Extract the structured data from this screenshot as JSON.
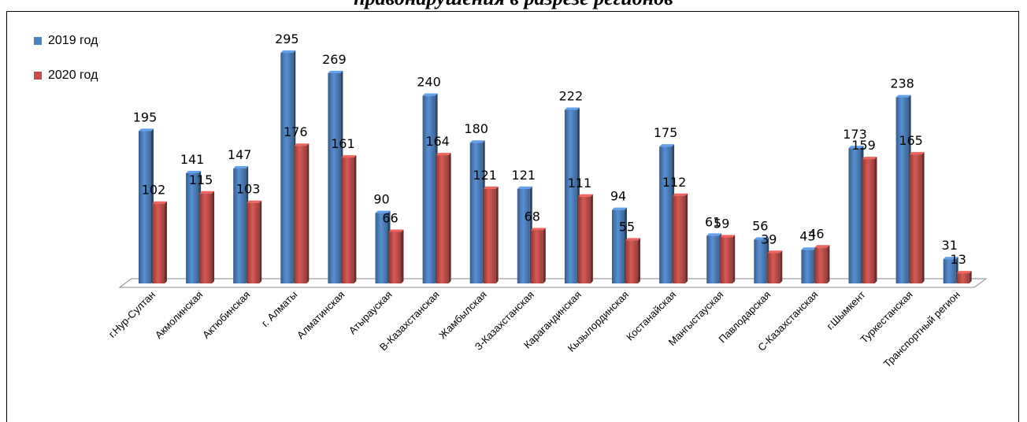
{
  "title_fragment": "правонарушения в разрезе регионов",
  "chart_data": {
    "type": "bar",
    "title": "правонарушения в разрезе регионов",
    "categories": [
      "г.Нур-Султан",
      "Акмолинская",
      "Актюбинская",
      "г. Алматы",
      "Алматинская",
      "Атырауская",
      "В-Казахстанская",
      "Жамбылская",
      "З-Казахстанская",
      "Карагандинская",
      "Кызылординская",
      "Костанайская",
      "Мангыстауская",
      "Павлодарская",
      "С-Казахстанская",
      "г.Шымкент",
      "Туркестанская",
      "Транспортный регион"
    ],
    "series": [
      {
        "name": "2019 год",
        "color": "#4F81BD",
        "values": [
          195,
          141,
          147,
          295,
          269,
          90,
          240,
          180,
          121,
          222,
          94,
          175,
          61,
          56,
          43,
          173,
          238,
          31
        ]
      },
      {
        "name": "2020 год",
        "color": "#C0504D",
        "values": [
          102,
          115,
          103,
          176,
          161,
          66,
          164,
          121,
          68,
          111,
          55,
          112,
          59,
          39,
          46,
          159,
          165,
          13
        ]
      }
    ],
    "legend_position": "top-left",
    "ylim": [
      0,
      300
    ],
    "grid": false
  }
}
